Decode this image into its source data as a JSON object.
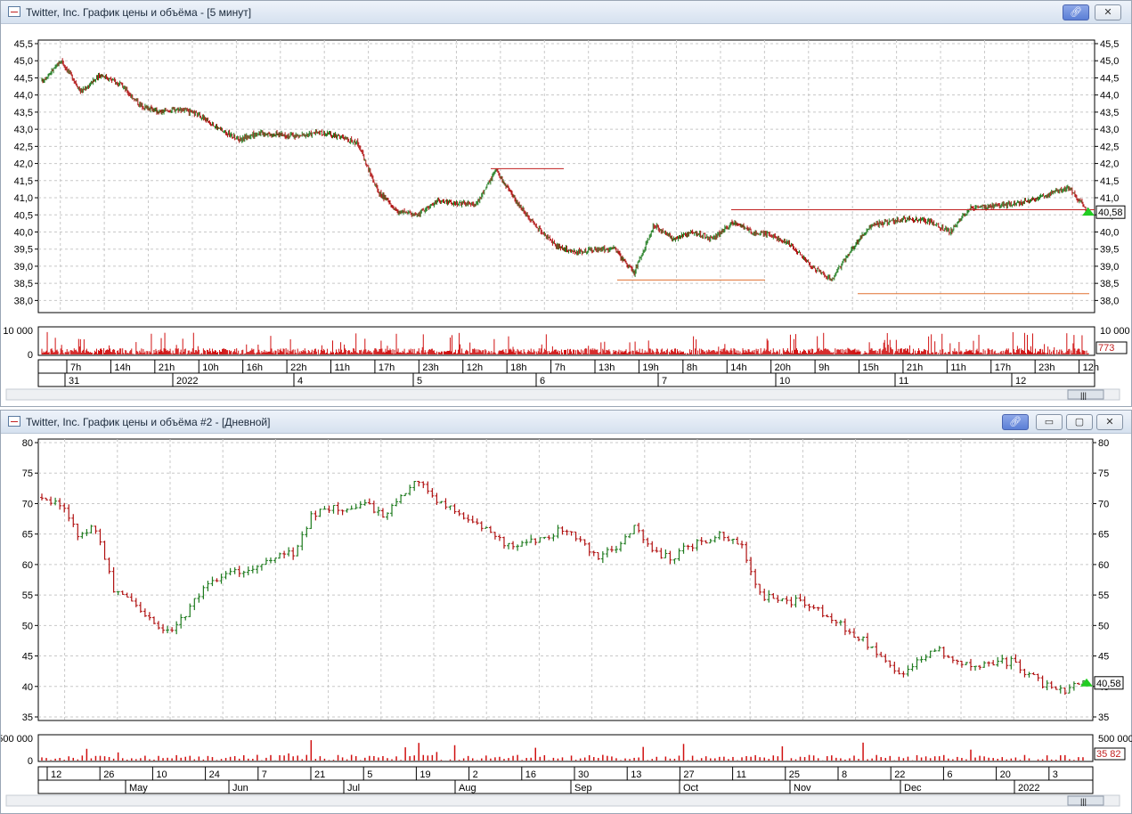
{
  "windows": [
    {
      "title": "Twitter, Inc. График цены и объёма - [5 минут]",
      "buttons": [
        "link",
        "close"
      ],
      "price_axis": {
        "labels": [
          "45,5",
          "45,0",
          "44,5",
          "44,0",
          "43,5",
          "43,0",
          "42,5",
          "42,0",
          "41,5",
          "41,0",
          "40,5",
          "40,0",
          "39,5",
          "39,0",
          "38,5",
          "38,0"
        ],
        "last_price": "40,58"
      },
      "volume_axis": {
        "left_label": "10 000",
        "left_zero": "0",
        "right_label": "10 000",
        "last_volume": "773"
      },
      "time_row1": [
        "7h",
        "14h",
        "21h",
        "10h",
        "16h",
        "22h",
        "11h",
        "17h",
        "23h",
        "12h",
        "18h",
        "7h",
        "13h",
        "19h",
        "8h",
        "14h",
        "20h",
        "9h",
        "15h",
        "21h",
        "11h",
        "17h",
        "23h",
        "12h"
      ],
      "time_row2": [
        "31",
        "2022",
        "4",
        "5",
        "6",
        "7",
        "10",
        "11",
        "12"
      ],
      "scrollbar_thumb": "|||"
    },
    {
      "title": "Twitter, Inc. График цены и объёма #2 - [Дневной]",
      "buttons": [
        "link",
        "minimize",
        "restore",
        "close"
      ],
      "price_axis": {
        "labels": [
          "80",
          "75",
          "70",
          "65",
          "60",
          "55",
          "50",
          "45",
          "40",
          "35"
        ],
        "last_price": "40,58"
      },
      "volume_axis": {
        "left_label": "500 000",
        "left_zero": "0",
        "right_label": "500 000",
        "last_volume": "35 82"
      },
      "time_row1": [
        "12",
        "26",
        "10",
        "24",
        "7",
        "21",
        "5",
        "19",
        "2",
        "16",
        "30",
        "13",
        "27",
        "11",
        "25",
        "8",
        "22",
        "6",
        "20",
        "3"
      ],
      "time_row2": [
        "May",
        "Jun",
        "Jul",
        "Aug",
        "Sep",
        "Oct",
        "Nov",
        "Dec",
        "2022"
      ],
      "scrollbar_thumb": "|||"
    }
  ],
  "chart_data": [
    {
      "type": "ohlc",
      "title": "Twitter, Inc. 5 минут",
      "y_range": [
        37.5,
        45.75
      ],
      "series": [
        {
          "values": [
            44.4,
            45.0,
            44.1,
            44.6,
            44.3,
            43.7,
            43.5,
            43.6,
            43.4,
            43.0,
            42.7,
            42.9,
            42.85,
            42.8,
            42.9,
            42.8,
            42.6,
            41.2,
            40.6,
            40.5,
            40.9,
            40.85,
            40.8,
            41.8,
            40.9,
            40.2,
            39.6,
            39.4,
            39.5,
            39.5,
            38.8,
            40.2,
            39.8,
            40.0,
            39.8,
            40.3,
            40.0,
            39.9,
            39.6,
            39.0,
            38.6,
            39.5,
            40.2,
            40.3,
            40.4,
            40.3,
            40.0,
            40.7,
            40.75,
            40.8,
            40.9,
            41.1,
            41.3,
            40.58
          ]
        }
      ],
      "levels": [
        41.85,
        40.65,
        38.6,
        38.2
      ]
    },
    {
      "type": "ohlc",
      "title": "Twitter, Inc. Дневной",
      "y_range": [
        34,
        80
      ],
      "series": [
        {
          "values": [
            71,
            70,
            65,
            66,
            56,
            54,
            51,
            49,
            52,
            56,
            58,
            59,
            60,
            61,
            62,
            68,
            69,
            69.5,
            70,
            68,
            71,
            74,
            70,
            69,
            67,
            65,
            63,
            64,
            64,
            66,
            64,
            61,
            63,
            66,
            62,
            61,
            63,
            64,
            65,
            63,
            55,
            54,
            54,
            53,
            51,
            49,
            47,
            44,
            42,
            45,
            46,
            44,
            43,
            44,
            44,
            42,
            40,
            39.5,
            40.58
          ]
        }
      ]
    }
  ]
}
